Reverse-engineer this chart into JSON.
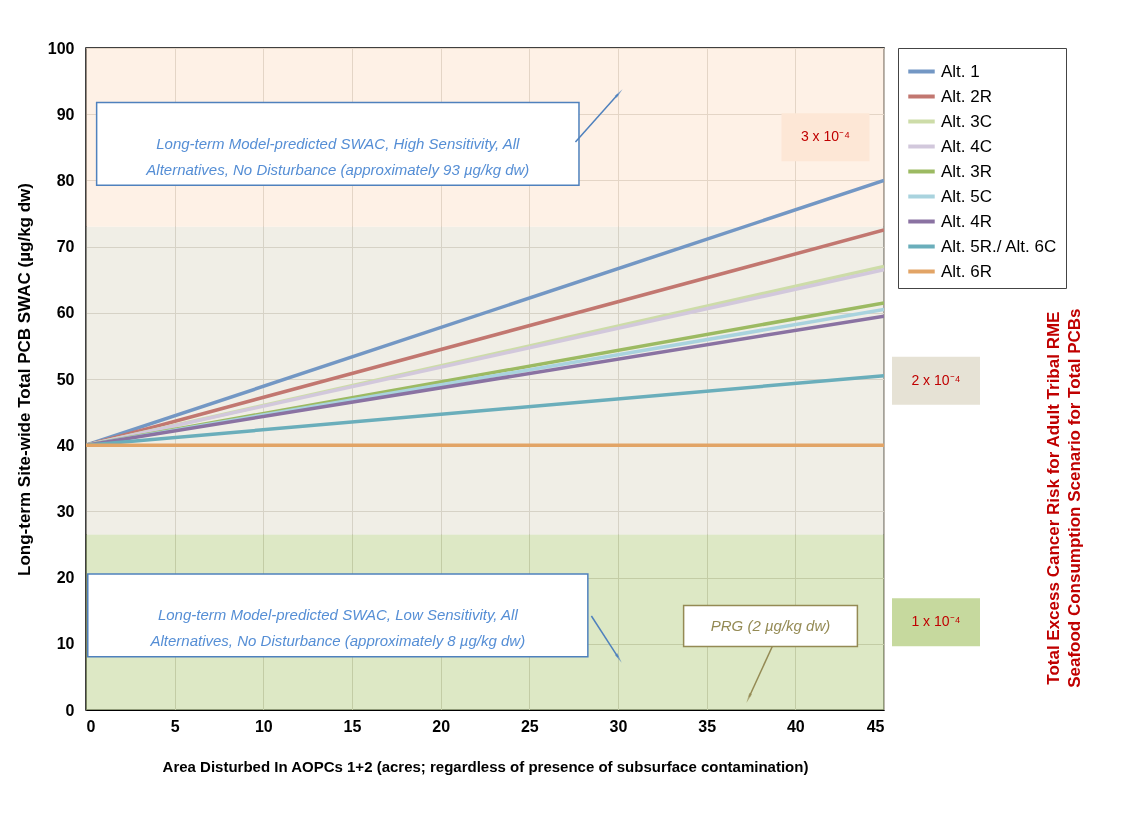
{
  "chart_data": {
    "type": "line",
    "xlabel": "Area Disturbed In AOPCs 1+2 (acres; regardless of presence of subsurface contamination)",
    "ylabel": "Long-term Site-wide Total PCB SWAC (µg/kg dw)",
    "x": [
      0,
      45
    ],
    "series": [
      {
        "name": "Alt. 1",
        "color": "#7397c4",
        "values": [
          40,
          80
        ]
      },
      {
        "name": "Alt. 2R",
        "color": "#c27770",
        "values": [
          40,
          72.5
        ]
      },
      {
        "name": "Alt. 3C",
        "color": "#cddca8",
        "values": [
          40,
          67
        ]
      },
      {
        "name": "Alt. 4C",
        "color": "#d2c8dc",
        "values": [
          40,
          66.5
        ]
      },
      {
        "name": "Alt. 3R",
        "color": "#9cba62",
        "values": [
          40,
          61.5
        ]
      },
      {
        "name": "Alt. 5C",
        "color": "#a9d3de",
        "values": [
          40,
          60.5
        ]
      },
      {
        "name": "Alt. 4R",
        "color": "#8a72a2",
        "values": [
          40,
          59.5
        ]
      },
      {
        "name": "Alt. 5R./ Alt. 6C",
        "color": "#6aaebb",
        "values": [
          40,
          50.5
        ]
      },
      {
        "name": "Alt. 6R",
        "color": "#e2a466",
        "values": [
          40,
          40
        ]
      }
    ],
    "xlim": [
      0,
      45
    ],
    "xticks": [
      0,
      5,
      10,
      15,
      20,
      25,
      30,
      35,
      40,
      45
    ],
    "ylim": [
      0,
      100
    ],
    "yticks": [
      0,
      10,
      20,
      30,
      40,
      50,
      60,
      70,
      80,
      90,
      100
    ],
    "bands": [
      {
        "axis": "y",
        "from": 0,
        "to": 26.5,
        "label": "1 x 10⁻⁴",
        "color": "#c6d99e"
      },
      {
        "axis": "y",
        "from": 26.5,
        "to": 73,
        "label": "2 x 10⁻⁴",
        "color": "#e6e2d5"
      },
      {
        "axis": "y",
        "from": 73,
        "to": 100,
        "label": "3 x 10⁻⁴",
        "color": "#fde7d6"
      }
    ],
    "annotations": [
      "Long-term Model-predicted SWAC, High Sensitivity, All Alternatives, No Disturbance (approximately 93 µg/kg dw)",
      "Long-term Model-predicted SWAC, Low Sensitivity, All Alternatives, No Disturbance (approximately 8 µg/kg dw)",
      "PRG (2 µg/kg dw)",
      "Total Excess Cancer Risk for Adult Tribal RME Seafood Consumption Scenario for Total PCBs"
    ],
    "grid": true,
    "legend": "right",
    "line_style": "solid",
    "marker": "none"
  }
}
